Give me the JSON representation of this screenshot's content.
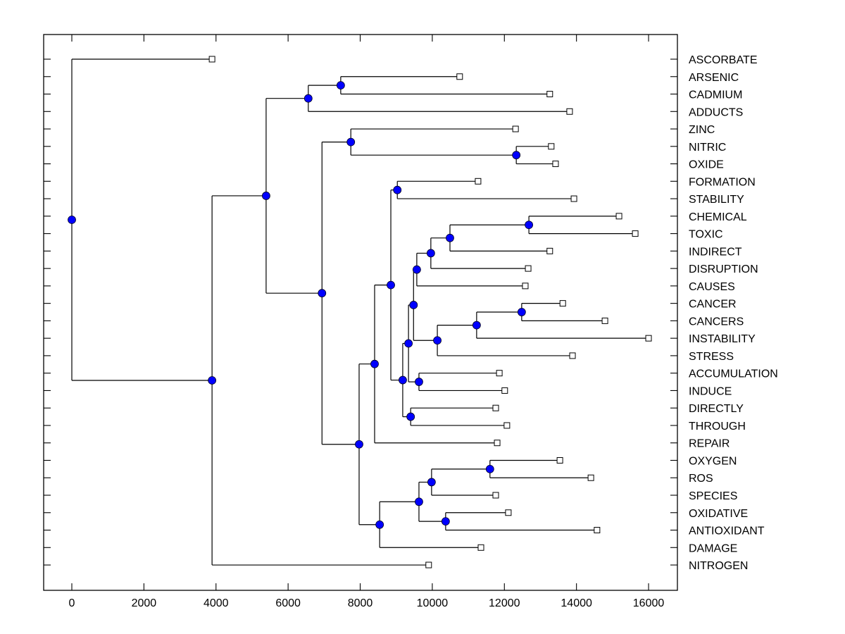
{
  "chart_data": {
    "type": "dendrogram",
    "title": "",
    "xlabel": "",
    "ylabel": "",
    "xlim": [
      -800,
      16800
    ],
    "x_ticks": [
      0,
      2000,
      4000,
      6000,
      8000,
      10000,
      12000,
      14000,
      16000
    ],
    "x_tick_labels": [
      "0",
      "2000",
      "4000",
      "6000",
      "8000",
      "10000",
      "12000",
      "14000",
      "16000"
    ],
    "grid": false,
    "leaf_label_position": "right",
    "colors": {
      "internal_node_fill": "#0000ff",
      "leaf_marker_fill": "#ffffff",
      "line": "#000000"
    },
    "leaves": [
      {
        "label": "ASCORBATE",
        "value": 3890
      },
      {
        "label": "ARSENIC",
        "value": 10760
      },
      {
        "label": "CADMIUM",
        "value": 13260
      },
      {
        "label": "ADDUCTS",
        "value": 13810
      },
      {
        "label": "ZINC",
        "value": 12310
      },
      {
        "label": "NITRIC",
        "value": 13300
      },
      {
        "label": "OXIDE",
        "value": 13420
      },
      {
        "label": "FORMATION",
        "value": 11270
      },
      {
        "label": "STABILITY",
        "value": 13930
      },
      {
        "label": "CHEMICAL",
        "value": 15180
      },
      {
        "label": "TOXIC",
        "value": 15630
      },
      {
        "label": "INDIRECT",
        "value": 13260
      },
      {
        "label": "DISRUPTION",
        "value": 12660
      },
      {
        "label": "CAUSES",
        "value": 12580
      },
      {
        "label": "CANCER",
        "value": 13620
      },
      {
        "label": "CANCERS",
        "value": 14790
      },
      {
        "label": "INSTABILITY",
        "value": 16000
      },
      {
        "label": "STRESS",
        "value": 13890
      },
      {
        "label": "ACCUMULATION",
        "value": 11860
      },
      {
        "label": "INDUCE",
        "value": 12010
      },
      {
        "label": "DIRECTLY",
        "value": 11760
      },
      {
        "label": "THROUGH",
        "value": 12070
      },
      {
        "label": "REPAIR",
        "value": 11800
      },
      {
        "label": "OXYGEN",
        "value": 13540
      },
      {
        "label": "ROS",
        "value": 14400
      },
      {
        "label": "SPECIES",
        "value": 11760
      },
      {
        "label": "OXIDATIVE",
        "value": 12110
      },
      {
        "label": "ANTIOXIDANT",
        "value": 14570
      },
      {
        "label": "DAMAGE",
        "value": 11350
      },
      {
        "label": "NITROGEN",
        "value": 9900
      }
    ],
    "tree": {
      "value": 0,
      "children": [
        {
          "leaf": "ASCORBATE"
        },
        {
          "value": 3890,
          "children": [
            {
              "value": 5390,
              "children": [
                {
                  "value": 6560,
                  "children": [
                    {
                      "value": 7460,
                      "children": [
                        {
                          "leaf": "ARSENIC"
                        },
                        {
                          "leaf": "CADMIUM"
                        }
                      ]
                    },
                    {
                      "leaf": "ADDUCTS"
                    }
                  ]
                },
                {
                  "value": 6940,
                  "children": [
                    {
                      "value": 7740,
                      "children": [
                        {
                          "leaf": "ZINC"
                        },
                        {
                          "value": 12330,
                          "children": [
                            {
                              "leaf": "NITRIC"
                            },
                            {
                              "leaf": "OXIDE"
                            }
                          ]
                        }
                      ]
                    },
                    {
                      "value": 7970,
                      "children": [
                        {
                          "value": 8400,
                          "children": [
                            {
                              "value": 8850,
                              "children": [
                                {
                                  "value": 9030,
                                  "children": [
                                    {
                                      "leaf": "FORMATION"
                                    },
                                    {
                                      "leaf": "STABILITY"
                                    }
                                  ]
                                },
                                {
                                  "value": 9180,
                                  "children": [
                                    {
                                      "value": 9340,
                                      "children": [
                                        {
                                          "value": 9480,
                                          "children": [
                                            {
                                              "value": 9570,
                                              "children": [
                                                {
                                                  "value": 9960,
                                                  "children": [
                                                    {
                                                      "value": 10490,
                                                      "children": [
                                                        {
                                                          "value": 12680,
                                                          "children": [
                                                            {
                                                              "leaf": "CHEMICAL"
                                                            },
                                                            {
                                                              "leaf": "TOXIC"
                                                            }
                                                          ]
                                                        },
                                                        {
                                                          "leaf": "INDIRECT"
                                                        }
                                                      ]
                                                    },
                                                    {
                                                      "leaf": "DISRUPTION"
                                                    }
                                                  ]
                                                },
                                                {
                                                  "leaf": "CAUSES"
                                                }
                                              ]
                                            },
                                            {
                                              "value": 10140,
                                              "children": [
                                                {
                                                  "value": 11230,
                                                  "children": [
                                                    {
                                                      "value": 12480,
                                                      "children": [
                                                        {
                                                          "leaf": "CANCER"
                                                        },
                                                        {
                                                          "leaf": "CANCERS"
                                                        }
                                                      ]
                                                    },
                                                    {
                                                      "leaf": "INSTABILITY"
                                                    }
                                                  ]
                                                },
                                                {
                                                  "leaf": "STRESS"
                                                }
                                              ]
                                            }
                                          ]
                                        },
                                        {
                                          "value": 9630,
                                          "children": [
                                            {
                                              "leaf": "ACCUMULATION"
                                            },
                                            {
                                              "leaf": "INDUCE"
                                            }
                                          ]
                                        }
                                      ]
                                    },
                                    {
                                      "value": 9400,
                                      "children": [
                                        {
                                          "leaf": "DIRECTLY"
                                        },
                                        {
                                          "leaf": "THROUGH"
                                        }
                                      ]
                                    }
                                  ]
                                }
                              ]
                            },
                            {
                              "leaf": "REPAIR"
                            }
                          ]
                        },
                        {
                          "value": 8540,
                          "children": [
                            {
                              "value": 9630,
                              "children": [
                                {
                                  "value": 9980,
                                  "children": [
                                    {
                                      "value": 11600,
                                      "children": [
                                        {
                                          "leaf": "OXYGEN"
                                        },
                                        {
                                          "leaf": "ROS"
                                        }
                                      ]
                                    },
                                    {
                                      "leaf": "SPECIES"
                                    }
                                  ]
                                },
                                {
                                  "value": 10370,
                                  "children": [
                                    {
                                      "leaf": "OXIDATIVE"
                                    },
                                    {
                                      "leaf": "ANTIOXIDANT"
                                    }
                                  ]
                                }
                              ]
                            },
                            {
                              "leaf": "DAMAGE"
                            }
                          ]
                        }
                      ]
                    }
                  ]
                }
              ]
            },
            {
              "leaf": "NITROGEN"
            }
          ]
        }
      ]
    }
  }
}
